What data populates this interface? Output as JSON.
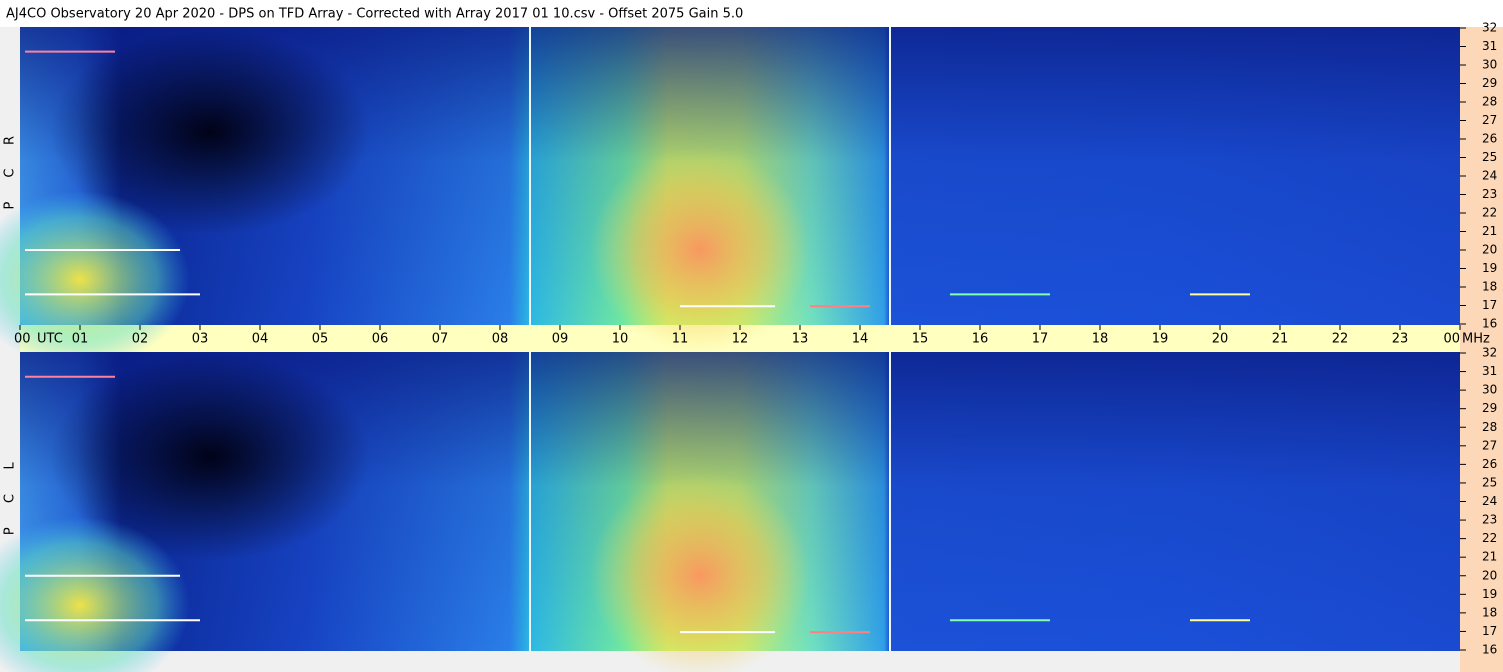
{
  "chart_data": {
    "type": "spectrogram",
    "title": "AJ4CO Observatory  20 Apr 2020  -  DPS on TFD Array  -  Corrected with Array 2017 01 10.csv  -  Offset 2075  Gain 5.0",
    "x_unit": "UTC",
    "y_unit": "MHz",
    "xlim": [
      0,
      24
    ],
    "xticks": [
      {
        "value": 0,
        "label": "00"
      },
      {
        "value": 1,
        "label": "01"
      },
      {
        "value": 2,
        "label": "02"
      },
      {
        "value": 3,
        "label": "03"
      },
      {
        "value": 4,
        "label": "04"
      },
      {
        "value": 5,
        "label": "05"
      },
      {
        "value": 6,
        "label": "06"
      },
      {
        "value": 7,
        "label": "07"
      },
      {
        "value": 8,
        "label": "08"
      },
      {
        "value": 9,
        "label": "09"
      },
      10,
      11,
      12,
      13,
      14,
      15,
      16,
      17,
      18,
      19,
      20,
      21,
      22,
      23,
      {
        "value": 24,
        "label": "00"
      }
    ],
    "panels": [
      {
        "label": [
          "R",
          "C",
          "P"
        ],
        "ylim": [
          16,
          32
        ],
        "yticks": [
          16,
          17,
          18,
          19,
          20,
          21,
          22,
          23,
          24,
          25,
          26,
          27,
          28,
          29,
          30,
          31,
          32
        ]
      },
      {
        "label": [
          "L",
          "C",
          "P"
        ],
        "ylim": [
          16,
          32
        ],
        "yticks": [
          16,
          17,
          18,
          19,
          20,
          21,
          22,
          23,
          24,
          25,
          26,
          27,
          28,
          29,
          30,
          31,
          32
        ]
      }
    ]
  }
}
